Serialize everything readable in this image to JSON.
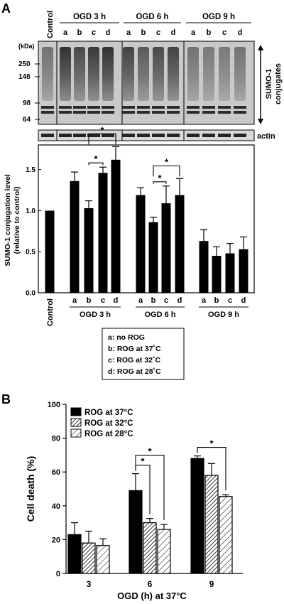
{
  "panelA": {
    "letter": "A",
    "blot": {
      "control_label": "Control",
      "groups": [
        {
          "label": "OGD 3 h",
          "lanes": [
            "a",
            "b",
            "c",
            "d"
          ]
        },
        {
          "label": "OGD 6 h",
          "lanes": [
            "a",
            "b",
            "c",
            "d"
          ]
        },
        {
          "label": "OGD 9 h",
          "lanes": [
            "a",
            "b",
            "c",
            "d"
          ]
        }
      ],
      "kda_label": "(kDa)",
      "markers": [
        "250",
        "148",
        "98",
        "64"
      ],
      "sumo_label_1": "SUMO-1",
      "sumo_label_2": "conjugates",
      "actin_label": "actin"
    },
    "legend": [
      "a: no ROG",
      "b: ROG at 37˚C",
      "c: ROG at 32˚C",
      "d: ROG at 28˚C"
    ]
  },
  "panelB": {
    "letter": "B"
  },
  "chart_data": [
    {
      "type": "bar",
      "ylabel_line1": "SUMO-1 conjugation level",
      "ylabel_line2": "(relative to control)",
      "ylim": [
        0,
        1.8
      ],
      "yticks": [
        "0.0",
        "0.5",
        "1.0",
        "1.5"
      ],
      "control_label": "Control",
      "control_value": 1.0,
      "groups": [
        {
          "label": "OGD 3 h",
          "lanes": [
            "a",
            "b",
            "c",
            "d"
          ],
          "values": [
            1.36,
            1.03,
            1.46,
            1.62
          ],
          "errors": [
            0.11,
            0.09,
            0.07,
            0.16
          ]
        },
        {
          "label": "OGD 6 h",
          "lanes": [
            "a",
            "b",
            "c",
            "d"
          ],
          "values": [
            1.19,
            0.86,
            1.09,
            1.19
          ],
          "errors": [
            0.09,
            0.06,
            0.21,
            0.2
          ]
        },
        {
          "label": "OGD 9 h",
          "lanes": [
            "a",
            "b",
            "c",
            "d"
          ],
          "values": [
            0.63,
            0.45,
            0.48,
            0.53
          ],
          "errors": [
            0.14,
            0.11,
            0.12,
            0.15
          ]
        }
      ],
      "significance": [
        {
          "group": 0,
          "from": 1,
          "to": 2,
          "label": "*"
        },
        {
          "group": 0,
          "from": 1,
          "to": 3,
          "label": "*"
        },
        {
          "group": 1,
          "from": 1,
          "to": 2,
          "label": "*"
        },
        {
          "group": 1,
          "from": 1,
          "to": 3,
          "label": "*"
        }
      ]
    },
    {
      "type": "bar",
      "ylabel": "Cell death (%)",
      "xlabel": "OGD (h) at 37°C",
      "ylim": [
        0,
        100
      ],
      "yticks": [
        "0",
        "20",
        "40",
        "60",
        "80",
        "100"
      ],
      "categories": [
        "3",
        "6",
        "9"
      ],
      "legend_position": "top-left",
      "series": [
        {
          "name": "ROG at 37°C",
          "pattern": "solid",
          "values": [
            23,
            49,
            68
          ],
          "errors": [
            7,
            10,
            1.5
          ]
        },
        {
          "name": "ROG at 32°C",
          "pattern": "hatch",
          "values": [
            18,
            30,
            58
          ],
          "errors": [
            7,
            2.5,
            7
          ]
        },
        {
          "name": "ROG at 28°C",
          "pattern": "hatch-light",
          "values": [
            16.5,
            26,
            45.5
          ],
          "errors": [
            4,
            3,
            1
          ]
        }
      ],
      "significance": [
        {
          "category": 1,
          "from": 0,
          "to": 1,
          "label": "*"
        },
        {
          "category": 1,
          "from": 0,
          "to": 2,
          "label": "*"
        },
        {
          "category": 2,
          "from": 0,
          "to": 2,
          "label": "*"
        }
      ]
    }
  ]
}
